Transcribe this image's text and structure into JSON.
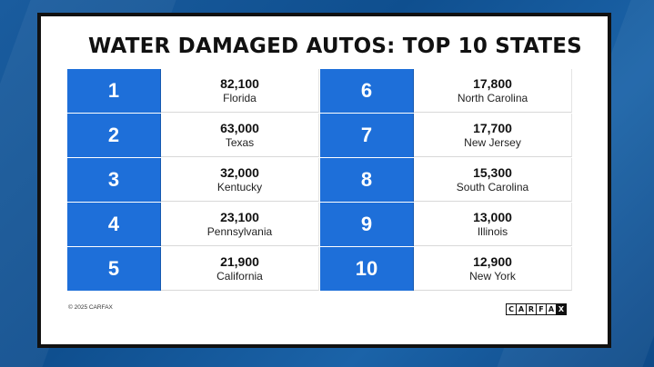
{
  "title": "WATER DAMAGED AUTOS: TOP 10 STATES",
  "rankings_left": [
    {
      "rank": "1",
      "count": "82,100",
      "state": "Florida"
    },
    {
      "rank": "2",
      "count": "63,000",
      "state": "Texas"
    },
    {
      "rank": "3",
      "count": "32,000",
      "state": "Kentucky"
    },
    {
      "rank": "4",
      "count": "23,100",
      "state": "Pennsylvania"
    },
    {
      "rank": "5",
      "count": "21,900",
      "state": "California"
    }
  ],
  "rankings_right": [
    {
      "rank": "6",
      "count": "17,800",
      "state": "North Carolina"
    },
    {
      "rank": "7",
      "count": "17,700",
      "state": "New Jersey"
    },
    {
      "rank": "8",
      "count": "15,300",
      "state": "South Carolina"
    },
    {
      "rank": "9",
      "count": "13,000",
      "state": "Illinois"
    },
    {
      "rank": "10",
      "count": "12,900",
      "state": "New York"
    }
  ],
  "footer": {
    "copyright": "© 2025 CARFAX",
    "logo_letters": [
      "C",
      "A",
      "R",
      "F",
      "A",
      "X"
    ]
  },
  "colors": {
    "rank_blue": "#1e6fd9",
    "background_blue": "#1a5c9e"
  }
}
